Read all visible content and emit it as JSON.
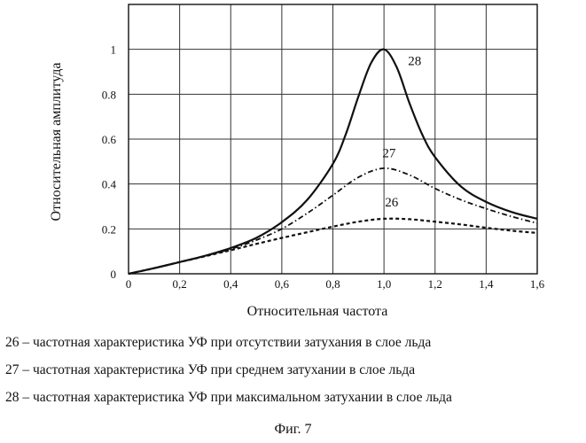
{
  "chart_data": {
    "type": "line",
    "xlabel": "Относительная частота",
    "ylabel": "Относительная амплитуда",
    "xlim": [
      0,
      1.6
    ],
    "ylim": [
      0,
      1.2
    ],
    "grid": true,
    "x_ticks": [
      "0",
      "0,2",
      "0,4",
      "0,6",
      "0,8",
      "1,0",
      "1,2",
      "1,4",
      "1,6"
    ],
    "y_ticks": [
      "0",
      "0.2",
      "0.4",
      "0.6",
      "0.8",
      "1"
    ],
    "series": [
      {
        "name": "26",
        "style": "dashed",
        "x": [
          0,
          0.1,
          0.2,
          0.3,
          0.4,
          0.5,
          0.6,
          0.7,
          0.8,
          0.9,
          1.0,
          1.1,
          1.2,
          1.3,
          1.4,
          1.5,
          1.6
        ],
        "y": [
          0,
          0.025,
          0.052,
          0.078,
          0.105,
          0.133,
          0.16,
          0.185,
          0.21,
          0.232,
          0.245,
          0.243,
          0.232,
          0.22,
          0.205,
          0.192,
          0.182
        ]
      },
      {
        "name": "27",
        "style": "dash-dot",
        "x": [
          0,
          0.1,
          0.2,
          0.3,
          0.4,
          0.5,
          0.6,
          0.7,
          0.8,
          0.9,
          1.0,
          1.1,
          1.2,
          1.3,
          1.4,
          1.5,
          1.6
        ],
        "y": [
          0,
          0.025,
          0.052,
          0.08,
          0.11,
          0.15,
          0.2,
          0.27,
          0.35,
          0.43,
          0.47,
          0.44,
          0.38,
          0.33,
          0.29,
          0.255,
          0.225
        ]
      },
      {
        "name": "28",
        "style": "solid",
        "x": [
          0,
          0.1,
          0.2,
          0.3,
          0.4,
          0.5,
          0.6,
          0.7,
          0.8,
          0.85,
          0.9,
          0.95,
          1.0,
          1.05,
          1.1,
          1.15,
          1.2,
          1.3,
          1.4,
          1.5,
          1.6
        ],
        "y": [
          0,
          0.025,
          0.052,
          0.08,
          0.115,
          0.16,
          0.23,
          0.33,
          0.49,
          0.62,
          0.79,
          0.94,
          1.0,
          0.92,
          0.76,
          0.62,
          0.52,
          0.39,
          0.32,
          0.275,
          0.245
        ]
      }
    ],
    "curve_labels": [
      {
        "text": "28",
        "x": 1.12,
        "y": 0.93
      },
      {
        "text": "27",
        "x": 1.02,
        "y": 0.52
      },
      {
        "text": "26",
        "x": 1.03,
        "y": 0.3
      }
    ]
  },
  "legend": [
    "26 – частотная характеристика УФ при отсутствии затухания в слое льда",
    "27 – частотная характеристика УФ при среднем затухании в слое льда",
    "28 – частотная характеристика УФ при максимальном затухании в слое льда"
  ],
  "caption": "Фиг. 7"
}
